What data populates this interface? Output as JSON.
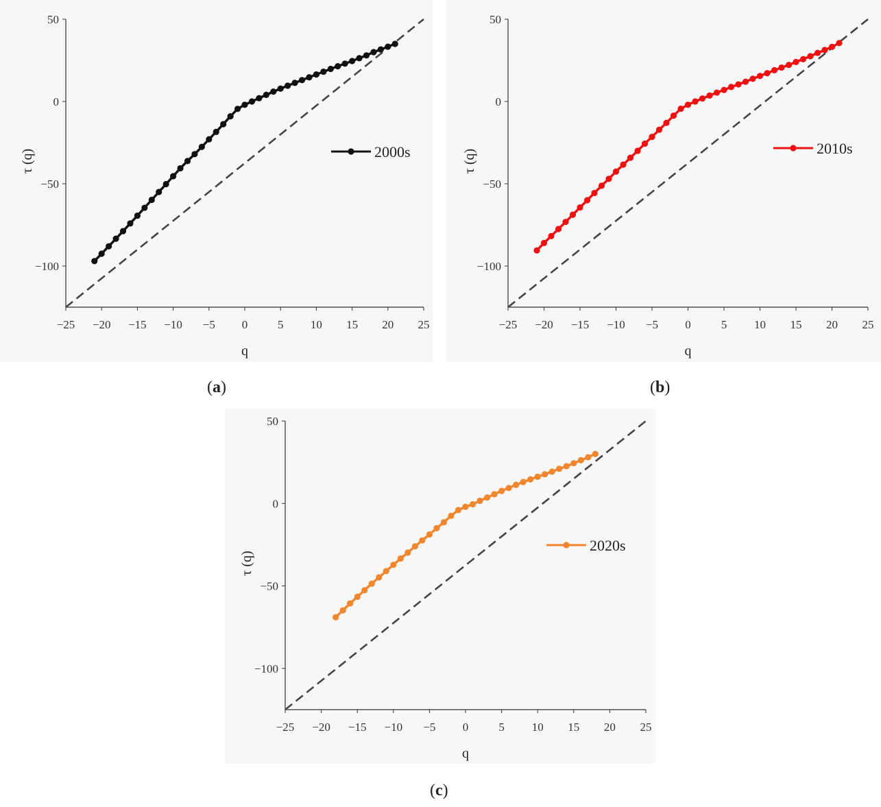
{
  "chart_data": [
    {
      "type": "line",
      "panel": "a",
      "caption_letter": "a",
      "xlabel": "q",
      "ylabel": "τ (q)",
      "xlim": [
        -25,
        25
      ],
      "ylim": [
        -125,
        50
      ],
      "xticks": [
        -25,
        -20,
        -15,
        -10,
        -5,
        0,
        5,
        10,
        15,
        20,
        25
      ],
      "yticks": [
        -100,
        -50,
        0,
        50
      ],
      "legend": "2000s",
      "legend_position": "center-right",
      "color": "#111111",
      "reference_line": {
        "style": "dashed",
        "points": [
          [
            -25,
            -125
          ],
          [
            25,
            50
          ]
        ]
      },
      "series": [
        {
          "name": "2000s",
          "x": [
            -21,
            -20,
            -19,
            -18,
            -17,
            -16,
            -15,
            -14,
            -13,
            -12,
            -11,
            -10,
            -9,
            -8,
            -7,
            -6,
            -5,
            -4,
            -3,
            -2,
            -1,
            0,
            1,
            2,
            3,
            4,
            5,
            6,
            7,
            8,
            9,
            10,
            11,
            12,
            13,
            14,
            15,
            16,
            17,
            18,
            19,
            20,
            21
          ],
          "y": [
            -97,
            -92.5,
            -88,
            -83.4,
            -78.8,
            -74.1,
            -69.4,
            -64.6,
            -59.8,
            -55,
            -50.2,
            -45.4,
            -40.6,
            -36.2,
            -32,
            -27.6,
            -23,
            -18.5,
            -13.8,
            -9,
            -4.5,
            -2,
            0,
            2,
            4,
            6,
            7.8,
            9.6,
            11.3,
            13,
            14.7,
            16.4,
            18.1,
            19.8,
            21.4,
            23,
            24.6,
            26.3,
            28,
            30,
            31.6,
            33.3,
            35
          ]
        }
      ]
    },
    {
      "type": "line",
      "panel": "b",
      "caption_letter": "b",
      "xlabel": "q",
      "ylabel": "τ (q)",
      "xlim": [
        -25,
        25
      ],
      "ylim": [
        -125,
        50
      ],
      "xticks": [
        -25,
        -20,
        -15,
        -10,
        -5,
        0,
        5,
        10,
        15,
        20,
        25
      ],
      "yticks": [
        -100,
        -50,
        0,
        50
      ],
      "legend": "2010s",
      "legend_position": "center-right",
      "color": "#ee1111",
      "reference_line": {
        "style": "dashed",
        "points": [
          [
            -25,
            -125
          ],
          [
            25,
            50
          ]
        ]
      },
      "series": [
        {
          "name": "2010s",
          "x": [
            -21,
            -20,
            -19,
            -18,
            -17,
            -16,
            -15,
            -14,
            -13,
            -12,
            -11,
            -10,
            -9,
            -8,
            -7,
            -6,
            -5,
            -4,
            -3,
            -2,
            -1,
            0,
            1,
            2,
            3,
            4,
            5,
            6,
            7,
            8,
            9,
            10,
            11,
            12,
            13,
            14,
            15,
            16,
            17,
            18,
            19,
            20,
            21
          ],
          "y": [
            -90.5,
            -86,
            -81.8,
            -77.5,
            -73.2,
            -68.8,
            -64.4,
            -60,
            -55.6,
            -51.2,
            -47,
            -42.6,
            -38.4,
            -34.2,
            -30,
            -25.6,
            -21.5,
            -17.2,
            -13,
            -8.6,
            -4.4,
            -2,
            0,
            1.8,
            3.6,
            5.4,
            7,
            8.8,
            10.4,
            12,
            13.8,
            15.5,
            17.2,
            19,
            20.6,
            22.2,
            24,
            25.7,
            27.5,
            29.5,
            31.3,
            33.2,
            35.5
          ]
        }
      ]
    },
    {
      "type": "line",
      "panel": "c",
      "caption_letter": "c",
      "xlabel": "q",
      "ylabel": "τ (q)",
      "xlim": [
        -25,
        25
      ],
      "ylim": [
        -125,
        50
      ],
      "xticks": [
        -25,
        -20,
        -15,
        -10,
        -5,
        0,
        5,
        10,
        15,
        20,
        25
      ],
      "yticks": [
        -100,
        -50,
        0,
        50
      ],
      "legend": "2020s",
      "legend_position": "center-right",
      "color": "#f0872f",
      "reference_line": {
        "style": "dashed",
        "points": [
          [
            -25,
            -125
          ],
          [
            25,
            50
          ]
        ]
      },
      "series": [
        {
          "name": "2020s",
          "x": [
            -18,
            -17,
            -16,
            -15,
            -14,
            -13,
            -12,
            -11,
            -10,
            -9,
            -8,
            -7,
            -6,
            -5,
            -4,
            -3,
            -2,
            -1,
            0,
            1,
            2,
            3,
            4,
            5,
            6,
            7,
            8,
            9,
            10,
            11,
            12,
            13,
            14,
            15,
            16,
            17,
            18
          ],
          "y": [
            -69,
            -64.8,
            -60.6,
            -56.6,
            -52.6,
            -48.6,
            -44.8,
            -41,
            -37.2,
            -33.4,
            -29.8,
            -26,
            -22.4,
            -18.8,
            -15,
            -11.4,
            -7.5,
            -4,
            -2,
            -0.5,
            1.6,
            3.6,
            5.6,
            7.6,
            9.4,
            11.3,
            13,
            14.6,
            16.2,
            17.7,
            19.3,
            21,
            22.6,
            24.4,
            26.2,
            28,
            30
          ]
        }
      ]
    }
  ]
}
